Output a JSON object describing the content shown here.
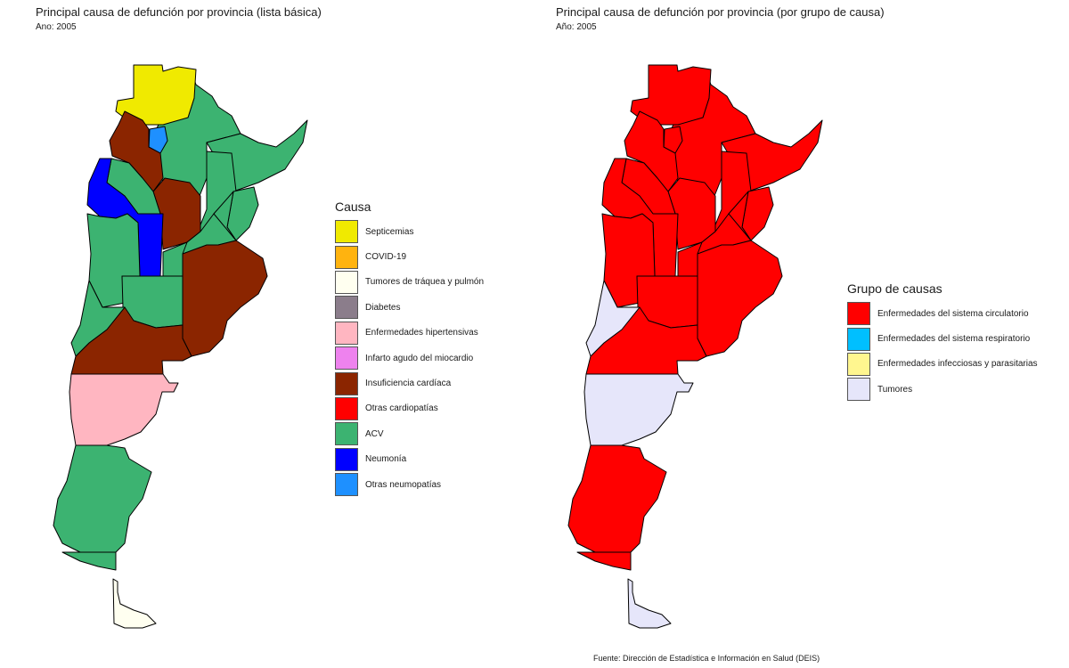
{
  "left_map": {
    "title": "Principal causa de defunción por provincia (lista básica)",
    "subtitle": "Ano: 2005",
    "legend": {
      "title": "Causa",
      "items": [
        {
          "label": "Septicemias",
          "color": "#f0ea00"
        },
        {
          "label": "COVID-19",
          "color": "#ffb30f"
        },
        {
          "label": "Tumores de tráquea y pulmón",
          "color": "#fffff0"
        },
        {
          "label": "Diabetes",
          "color": "#8b7d8b"
        },
        {
          "label": "Enfermedades hipertensivas",
          "color": "#ffb6c1"
        },
        {
          "label": "Infarto agudo del miocardio",
          "color": "#ee82ee"
        },
        {
          "label": "Insuficiencia cardíaca",
          "color": "#8b2500"
        },
        {
          "label": "Otras cardiopatías",
          "color": "#ff0000"
        },
        {
          "label": "ACV",
          "color": "#3cb371"
        },
        {
          "label": "Neumonía",
          "color": "#0000ff"
        },
        {
          "label": "Otras neumopatías",
          "color": "#1e90ff"
        }
      ]
    }
  },
  "right_map": {
    "title": "Principal causa de defunción por provincia (por grupo de causa)",
    "subtitle": "Año: 2005",
    "legend": {
      "title": "Grupo de causas",
      "items": [
        {
          "label": "Enfermedades del sistema circulatorio",
          "color": "#ff0000"
        },
        {
          "label": "Enfermedades del sistema respiratorio",
          "color": "#00bfff"
        },
        {
          "label": "Enfermedades infecciosas y parasitarias",
          "color": "#fff68f"
        },
        {
          "label": "Tumores",
          "color": "#e6e6fa"
        }
      ]
    }
  },
  "source": "Fuente: Dirección de Estadística e Información en Salud (DEIS)"
}
